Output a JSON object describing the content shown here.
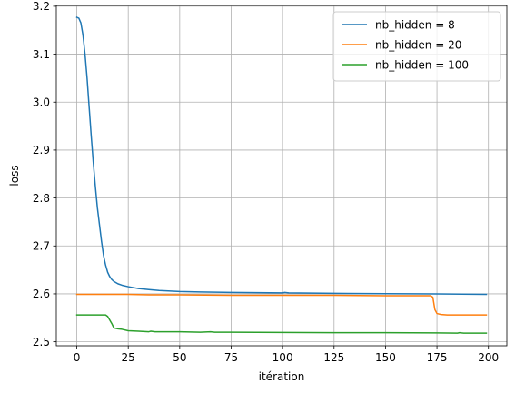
{
  "chart_data": {
    "type": "line",
    "title": "",
    "xlabel": "itération",
    "ylabel": "loss",
    "xlim": [
      -9.95,
      208.95
    ],
    "ylim": [
      2.4917,
      3.2017
    ],
    "xticks": [
      0,
      25,
      50,
      75,
      100,
      125,
      150,
      175,
      200
    ],
    "yticks": [
      2.5,
      2.6,
      2.7,
      2.8,
      2.9,
      3.0,
      3.1,
      3.2
    ],
    "ytick_labels": [
      "2.5",
      "2.6",
      "2.7",
      "2.8",
      "2.9",
      "3.0",
      "3.1",
      "3.2"
    ],
    "grid": true,
    "legend_position": "top-right",
    "series": [
      {
        "name": "nb_hidden = 8",
        "color": "#1f77b4",
        "points": [
          [
            0,
            3.177
          ],
          [
            1,
            3.175
          ],
          [
            2,
            3.165
          ],
          [
            3,
            3.14
          ],
          [
            4,
            3.1
          ],
          [
            5,
            3.05
          ],
          [
            6,
            2.99
          ],
          [
            7,
            2.93
          ],
          [
            8,
            2.875
          ],
          [
            9,
            2.825
          ],
          [
            10,
            2.78
          ],
          [
            11,
            2.745
          ],
          [
            12,
            2.71
          ],
          [
            13,
            2.68
          ],
          [
            14,
            2.66
          ],
          [
            15,
            2.645
          ],
          [
            16,
            2.636
          ],
          [
            17,
            2.63
          ],
          [
            18,
            2.626
          ],
          [
            20,
            2.621
          ],
          [
            22,
            2.618
          ],
          [
            25,
            2.615
          ],
          [
            30,
            2.611
          ],
          [
            35,
            2.609
          ],
          [
            40,
            2.607
          ],
          [
            50,
            2.605
          ],
          [
            60,
            2.604
          ],
          [
            75,
            2.603
          ],
          [
            100,
            2.602
          ],
          [
            101,
            2.603
          ],
          [
            103,
            2.602
          ],
          [
            125,
            2.601
          ],
          [
            150,
            2.6005
          ],
          [
            175,
            2.6
          ],
          [
            199,
            2.599
          ]
        ]
      },
      {
        "name": "nb_hidden = 20",
        "color": "#ff7f0e",
        "points": [
          [
            0,
            2.599
          ],
          [
            25,
            2.599
          ],
          [
            35,
            2.598
          ],
          [
            50,
            2.598
          ],
          [
            75,
            2.597
          ],
          [
            100,
            2.597
          ],
          [
            125,
            2.597
          ],
          [
            150,
            2.596
          ],
          [
            172,
            2.596
          ],
          [
            173,
            2.593
          ],
          [
            174,
            2.567
          ],
          [
            175,
            2.559
          ],
          [
            177,
            2.557
          ],
          [
            180,
            2.556
          ],
          [
            190,
            2.556
          ],
          [
            199,
            2.556
          ]
        ]
      },
      {
        "name": "nb_hidden = 100",
        "color": "#2ca02c",
        "points": [
          [
            0,
            2.556
          ],
          [
            14,
            2.556
          ],
          [
            15,
            2.553
          ],
          [
            17,
            2.538
          ],
          [
            18,
            2.529
          ],
          [
            20,
            2.527
          ],
          [
            22,
            2.526
          ],
          [
            25,
            2.523
          ],
          [
            30,
            2.522
          ],
          [
            35,
            2.521
          ],
          [
            36,
            2.522
          ],
          [
            38,
            2.521
          ],
          [
            50,
            2.521
          ],
          [
            60,
            2.52
          ],
          [
            65,
            2.521
          ],
          [
            67,
            2.52
          ],
          [
            100,
            2.5195
          ],
          [
            125,
            2.519
          ],
          [
            150,
            2.519
          ],
          [
            175,
            2.5185
          ],
          [
            185,
            2.518
          ],
          [
            186,
            2.519
          ],
          [
            188,
            2.518
          ],
          [
            199,
            2.518
          ]
        ]
      }
    ]
  }
}
